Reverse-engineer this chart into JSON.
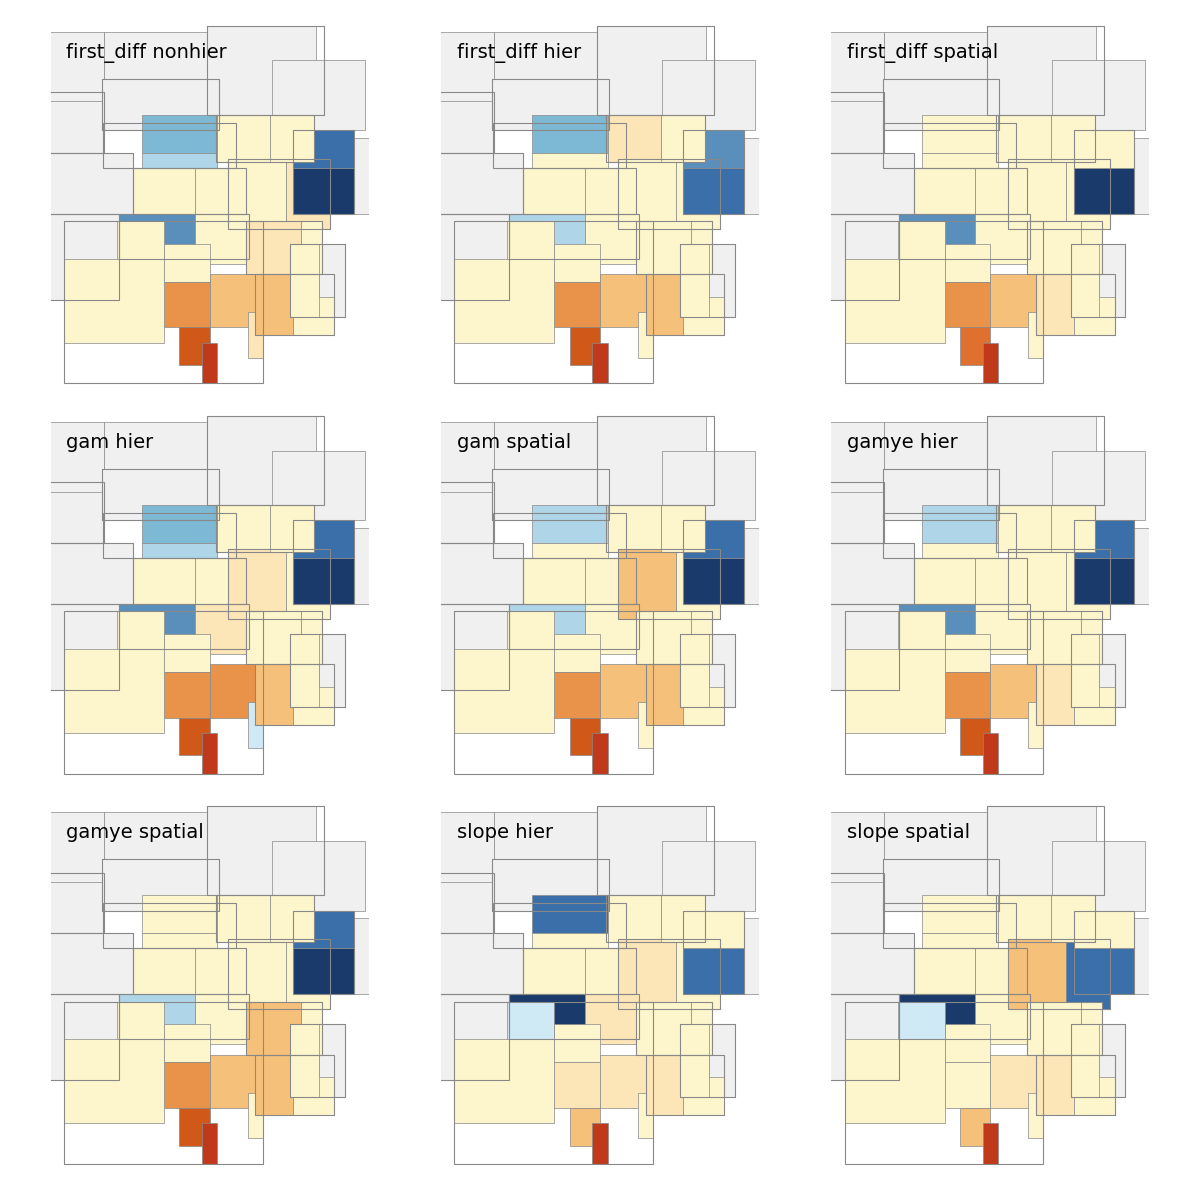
{
  "titles": [
    "first_diff nonhier",
    "first_diff hier",
    "first_diff spatial",
    "gam hier",
    "gam spatial",
    "gamye hier",
    "gamye spatial",
    "slope hier",
    "slope spatial"
  ],
  "background_color": "#ffffff",
  "title_fontsize": 14,
  "grid_rows": 3,
  "grid_cols": 3,
  "colors": {
    "deep_blue": "#1a3a6b",
    "medium_blue": "#3a6faa",
    "light_blue": "#7ab3d4",
    "very_light_blue": "#add8e6",
    "pale_yellow": "#fdf5cc",
    "light_orange": "#f5c87a",
    "medium_orange": "#e8924a",
    "dark_orange": "#d45f1e",
    "deep_red_orange": "#c0392b",
    "white_outline": "#cccccc",
    "state_outline": "#888888"
  }
}
